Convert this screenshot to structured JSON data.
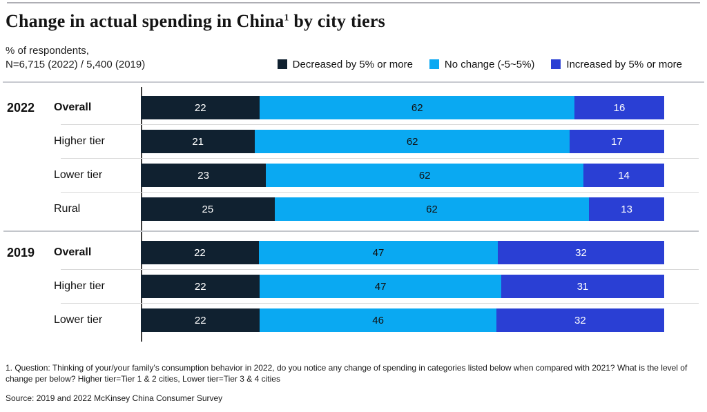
{
  "header": {
    "title_main": "Change in actual spending in China",
    "title_footnote_marker": "1",
    "title_suffix": " by city tiers",
    "subtitle_line1": "% of respondents,",
    "subtitle_line2": "N=6,715 (2022) / 5,400 (2019)"
  },
  "legend": [
    {
      "label": "Decreased by 5% or more",
      "color": "#102130"
    },
    {
      "label": "No change (-5~5%)",
      "color": "#0aa9f2"
    },
    {
      "label": "Increased by 5% or more",
      "color": "#2a3fd4"
    }
  ],
  "chart_data": {
    "type": "bar",
    "orientation": "horizontal",
    "stacked": true,
    "units": "% of respondents",
    "xlim": [
      0,
      100
    ],
    "grid": false,
    "legend_position": "top-right",
    "series_names": [
      "Decreased by 5% or more",
      "No change (-5~5%)",
      "Increased by 5% or more"
    ],
    "series_colors": [
      "#102130",
      "#0aa9f2",
      "#2a3fd4"
    ],
    "value_text_colors": [
      "#ffffff",
      "#111111",
      "#ffffff"
    ],
    "groups": [
      {
        "year": "2022",
        "rows": [
          {
            "label": "Overall",
            "bold": true,
            "values": [
              22,
              62,
              16
            ]
          },
          {
            "label": "Higher tier",
            "bold": false,
            "values": [
              21,
              62,
              17
            ]
          },
          {
            "label": "Lower tier",
            "bold": false,
            "values": [
              23,
              62,
              14
            ]
          },
          {
            "label": "Rural",
            "bold": false,
            "values": [
              25,
              62,
              13
            ]
          }
        ]
      },
      {
        "year": "2019",
        "rows": [
          {
            "label": "Overall",
            "bold": true,
            "values": [
              22,
              47,
              32
            ]
          },
          {
            "label": "Higher tier",
            "bold": false,
            "values": [
              22,
              47,
              31
            ]
          },
          {
            "label": "Lower tier",
            "bold": false,
            "values": [
              22,
              46,
              32
            ]
          }
        ]
      }
    ]
  },
  "footnote": "1. Question: Thinking of your/your family's consumption behavior in 2022, do you notice any change of spending in categories listed below when compared with 2021? What is the level of change per below?  Higher tier=Tier 1 & 2 cities, Lower tier=Tier 3 & 4 cities",
  "source": "Source: 2019 and 2022 McKinsey China Consumer Survey"
}
